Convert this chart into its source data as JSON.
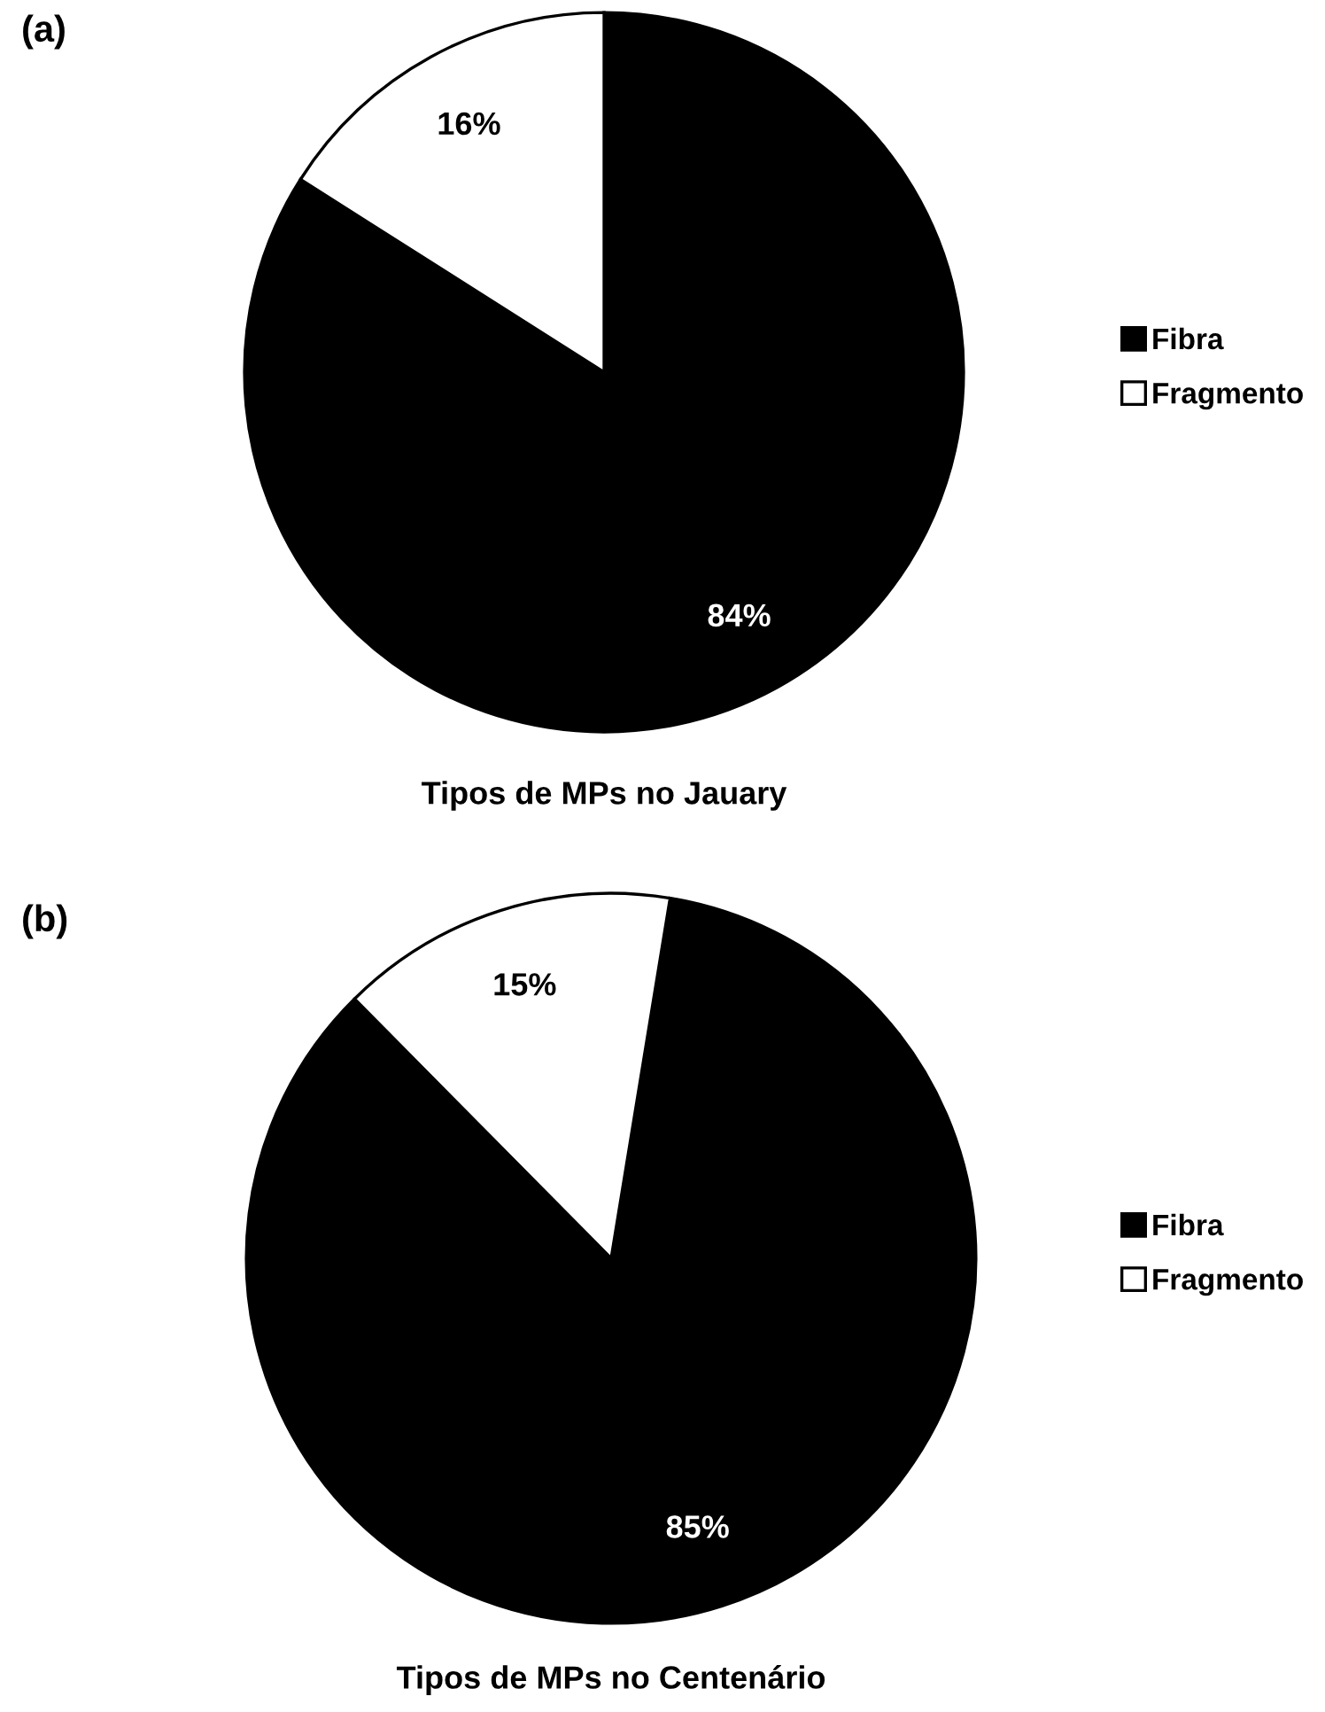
{
  "chart_data": [
    {
      "type": "pie",
      "title": "Tipos de MPs no Jauary",
      "categories": [
        "Fibra",
        "Fragmento"
      ],
      "values": [
        84,
        16
      ],
      "colors": [
        "#000000",
        "#ffffff"
      ],
      "value_labels": [
        "84%",
        "16%"
      ],
      "legend": "right",
      "annotations": [
        "(a)"
      ]
    },
    {
      "type": "pie",
      "title": "Tipos de MPs no Centenário",
      "categories": [
        "Fibra",
        "Fragmento"
      ],
      "values": [
        85,
        15
      ],
      "colors": [
        "#000000",
        "#ffffff"
      ],
      "value_labels": [
        "85%",
        "15%"
      ],
      "legend": "right",
      "annotations": [
        "(b)"
      ]
    }
  ]
}
